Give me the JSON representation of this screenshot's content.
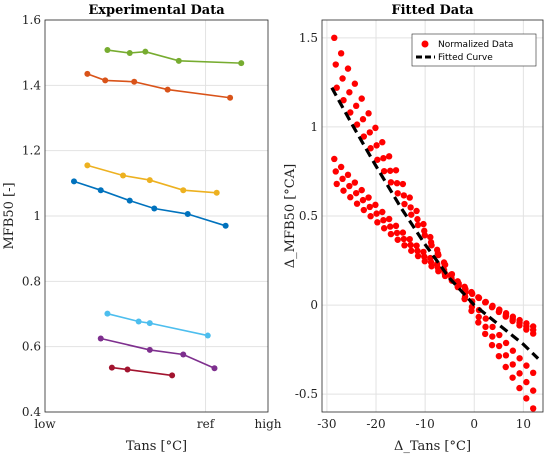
{
  "chart_data": [
    {
      "type": "line",
      "title": "Experimental Data",
      "xlabel": "Tans [°C]",
      "ylabel": "MFB50 [-]",
      "x_ticks": [
        "low",
        "ref",
        "high"
      ],
      "ylim": [
        0.4,
        1.6
      ],
      "yticks": [
        "0.4",
        "0.6",
        "0.8",
        "1",
        "1.2",
        "1.4",
        "1.6"
      ],
      "grid": true,
      "series": [
        {
          "color": "#77ac30",
          "points": [
            {
              "x": 0.28,
              "y": 1.508
            },
            {
              "x": 0.38,
              "y": 1.499
            },
            {
              "x": 0.45,
              "y": 1.503
            },
            {
              "x": 0.6,
              "y": 1.475
            },
            {
              "x": 0.88,
              "y": 1.468
            }
          ]
        },
        {
          "color": "#d95319",
          "points": [
            {
              "x": 0.19,
              "y": 1.435
            },
            {
              "x": 0.27,
              "y": 1.415
            },
            {
              "x": 0.4,
              "y": 1.411
            },
            {
              "x": 0.55,
              "y": 1.387
            },
            {
              "x": 0.83,
              "y": 1.362
            }
          ]
        },
        {
          "color": "#edb120",
          "points": [
            {
              "x": 0.19,
              "y": 1.155
            },
            {
              "x": 0.35,
              "y": 1.124
            },
            {
              "x": 0.47,
              "y": 1.11
            },
            {
              "x": 0.62,
              "y": 1.079
            },
            {
              "x": 0.77,
              "y": 1.071
            }
          ]
        },
        {
          "color": "#0072bd",
          "points": [
            {
              "x": 0.13,
              "y": 1.106
            },
            {
              "x": 0.25,
              "y": 1.079
            },
            {
              "x": 0.38,
              "y": 1.047
            },
            {
              "x": 0.49,
              "y": 1.023
            },
            {
              "x": 0.64,
              "y": 1.006
            },
            {
              "x": 0.81,
              "y": 0.97
            }
          ]
        },
        {
          "color": "#4dbeee",
          "points": [
            {
              "x": 0.28,
              "y": 0.701
            },
            {
              "x": 0.42,
              "y": 0.677
            },
            {
              "x": 0.47,
              "y": 0.672
            },
            {
              "x": 0.73,
              "y": 0.634
            }
          ]
        },
        {
          "color": "#7e2f8e",
          "points": [
            {
              "x": 0.25,
              "y": 0.625
            },
            {
              "x": 0.47,
              "y": 0.59
            },
            {
              "x": 0.62,
              "y": 0.576
            },
            {
              "x": 0.76,
              "y": 0.534
            }
          ]
        },
        {
          "color": "#a2142f",
          "points": [
            {
              "x": 0.3,
              "y": 0.536
            },
            {
              "x": 0.37,
              "y": 0.53
            },
            {
              "x": 0.57,
              "y": 0.512
            }
          ]
        }
      ]
    },
    {
      "type": "scatter",
      "title": "Fitted Data",
      "xlabel": "Δ_Tans [°C]",
      "ylabel": "Δ_MFB50 [°CA]",
      "xlim": [
        -31,
        14
      ],
      "ylim": [
        -0.6,
        1.6
      ],
      "xticks": [
        "-30",
        "-20",
        "-10",
        "0",
        "10"
      ],
      "yticks": [
        "-0.5",
        "0",
        "0.5",
        "1",
        "1.5"
      ],
      "grid": true,
      "legend_position": "top-right",
      "legend": [
        {
          "label": "Normalized Data",
          "marker": "filled-circle",
          "color": "#ff0000"
        },
        {
          "label": "Fitted Curve",
          "style": "dashed",
          "color": "#000000"
        }
      ],
      "scatter_bands": [
        {
          "color": "#ff0000",
          "x_start": -28.5,
          "x_end": 12,
          "y_start": 1.5,
          "y_end": -0.58,
          "curvature": 0.22
        },
        {
          "color": "#ff0000",
          "x_start": -28.2,
          "x_end": 12,
          "y_start": 1.35,
          "y_end": -0.48,
          "curvature": 0.25
        },
        {
          "color": "#ff0000",
          "x_start": -28.0,
          "x_end": 12,
          "y_start": 1.22,
          "y_end": -0.38,
          "curvature": 0.28
        },
        {
          "color": "#ff0000",
          "x_start": -28.5,
          "x_end": 12,
          "y_start": 0.82,
          "y_end": -0.16,
          "curvature": 0.34
        },
        {
          "color": "#ff0000",
          "x_start": -28.2,
          "x_end": 12,
          "y_start": 0.75,
          "y_end": -0.14,
          "curvature": 0.36
        },
        {
          "color": "#ff0000",
          "x_start": -28.0,
          "x_end": 12,
          "y_start": 0.68,
          "y_end": -0.12,
          "curvature": 0.38
        }
      ],
      "fitted_curve": {
        "color": "#000000",
        "points": [
          {
            "x": -29,
            "y": 1.22
          },
          {
            "x": -25,
            "y": 1.02
          },
          {
            "x": -20,
            "y": 0.78
          },
          {
            "x": -15,
            "y": 0.55
          },
          {
            "x": -10,
            "y": 0.34
          },
          {
            "x": -5,
            "y": 0.15
          },
          {
            "x": 0,
            "y": 0.0
          },
          {
            "x": 5,
            "y": -0.11
          },
          {
            "x": 10,
            "y": -0.22
          },
          {
            "x": 13,
            "y": -0.3
          }
        ]
      }
    }
  ]
}
